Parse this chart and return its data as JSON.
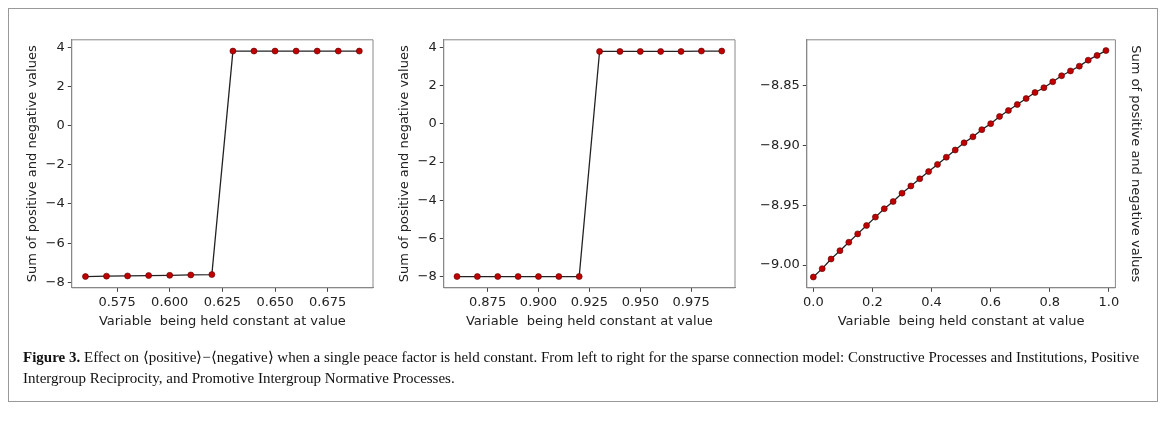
{
  "chart_data": [
    {
      "type": "line",
      "xlabel": "Variable  being held constant at value",
      "ylabel": "Sum of positive and negative values",
      "marker": "circle",
      "grid": false,
      "xlim": [
        0.5535,
        0.6965
      ],
      "xticks": [
        {
          "value": 0.575,
          "label": "0.575"
        },
        {
          "value": 0.6,
          "label": "0.600"
        },
        {
          "value": 0.625,
          "label": "0.625"
        },
        {
          "value": 0.65,
          "label": "0.650"
        },
        {
          "value": 0.675,
          "label": "0.675"
        }
      ],
      "ylim": [
        -8.275,
        4.375
      ],
      "yticks": [
        {
          "value": -8,
          "label": "−8"
        },
        {
          "value": -6,
          "label": "−6"
        },
        {
          "value": -4,
          "label": "−4"
        },
        {
          "value": -2,
          "label": "−2"
        },
        0,
        2,
        4
      ],
      "x": [
        0.56,
        0.57,
        0.58,
        0.59,
        0.6,
        0.61,
        0.62,
        0.63,
        0.64,
        0.65,
        0.66,
        0.67,
        0.68,
        0.69
      ],
      "series": [
        {
          "color": "#c00000",
          "values": [
            -7.7,
            -7.68,
            -7.67,
            -7.65,
            -7.64,
            -7.62,
            -7.6,
            3.8,
            3.8,
            3.8,
            3.8,
            3.8,
            3.8,
            3.8
          ]
        }
      ],
      "annotations": [
        "Figure 3.",
        "Effect on ⟨positive⟩−⟨negative⟩ when a single peace factor is held constant. From left to right for the sparse connection model: Constructive Processes and Institutions, Positive Intergroup Reciprocity, and Promotive Intergroup Normative Processes."
      ]
    },
    {
      "type": "line",
      "xlabel": "Variable  being held constant at value",
      "ylabel": "Sum of positive and negative values",
      "marker": "circle",
      "grid": false,
      "xlim": [
        0.8535,
        0.9965
      ],
      "xticks": [
        {
          "value": 0.875,
          "label": "0.875"
        },
        {
          "value": 0.9,
          "label": "0.900"
        },
        {
          "value": 0.925,
          "label": "0.925"
        },
        {
          "value": 0.95,
          "label": "0.950"
        },
        {
          "value": 0.975,
          "label": "0.975"
        }
      ],
      "ylim": [
        -8.59,
        4.41
      ],
      "yticks": [
        {
          "value": -8,
          "label": "−8"
        },
        {
          "value": -6,
          "label": "−6"
        },
        {
          "value": -4,
          "label": "−4"
        },
        {
          "value": -2,
          "label": "−2"
        },
        0,
        2,
        4
      ],
      "x": [
        0.86,
        0.87,
        0.88,
        0.89,
        0.9,
        0.91,
        0.92,
        0.93,
        0.94,
        0.95,
        0.96,
        0.97,
        0.98,
        0.99
      ],
      "series": [
        {
          "color": "#c00000",
          "values": [
            -8,
            -8,
            -8,
            -8,
            -8,
            -8,
            -8,
            3.8,
            3.8,
            3.8,
            3.8,
            3.8,
            3.82,
            3.82
          ]
        }
      ]
    },
    {
      "type": "line",
      "xlabel": "Variable  being held constant at value",
      "y2label": "Sum of positive and negative values",
      "marker": "circle",
      "grid": false,
      "xlim": [
        -0.022,
        1.022
      ],
      "xticks": [
        {
          "value": 0,
          "label": "0.0"
        },
        {
          "value": 0.2,
          "label": "0.2"
        },
        {
          "value": 0.4,
          "label": "0.4"
        },
        {
          "value": 0.6,
          "label": "0.6"
        },
        {
          "value": 0.8,
          "label": "0.8"
        },
        {
          "value": 1,
          "label": "1.0"
        }
      ],
      "ylim": [
        -9.019,
        -8.812
      ],
      "yticks": [
        {
          "value": -9,
          "label": "−9.00"
        },
        {
          "value": -8.95,
          "label": "−8.95"
        },
        {
          "value": -8.9,
          "label": "−8.90"
        },
        {
          "value": -8.85,
          "label": "−8.85"
        }
      ],
      "x": [
        0,
        0.03,
        0.06,
        0.09,
        0.12,
        0.15,
        0.18,
        0.21,
        0.24,
        0.27,
        0.3,
        0.33,
        0.36,
        0.39,
        0.42,
        0.45,
        0.48,
        0.51,
        0.54,
        0.57,
        0.6,
        0.63,
        0.66,
        0.69,
        0.72,
        0.75,
        0.78,
        0.81,
        0.84,
        0.87,
        0.9,
        0.93,
        0.96,
        0.99
      ],
      "series": [
        {
          "color": "#c00000",
          "values": [
            -9.01,
            -9.003,
            -8.995,
            -8.988,
            -8.981,
            -8.974,
            -8.967,
            -8.96,
            -8.953,
            -8.947,
            -8.94,
            -8.934,
            -8.928,
            -8.922,
            -8.916,
            -8.91,
            -8.904,
            -8.898,
            -8.893,
            -8.887,
            -8.882,
            -8.876,
            -8.871,
            -8.866,
            -8.861,
            -8.856,
            -8.852,
            -8.847,
            -8.842,
            -8.838,
            -8.834,
            -8.829,
            -8.825,
            -8.821
          ]
        }
      ]
    }
  ]
}
